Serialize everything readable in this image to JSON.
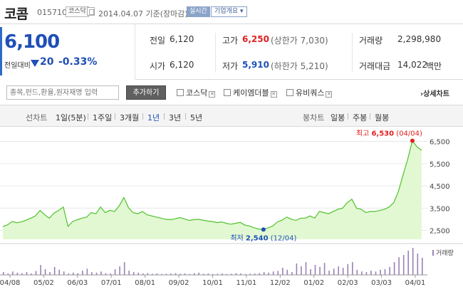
{
  "header": {
    "name": "코콤",
    "code": "015710",
    "market": "코스닥",
    "date": "2014.04.07 기준(장마감)",
    "live_label": "실시간",
    "info_label": "기업개요"
  },
  "price": {
    "current": "6,100",
    "change_label": "전일대비",
    "change": "20",
    "change_pct": "-0.33%",
    "color": "#1f4fb8"
  },
  "stats": {
    "prev_close_label": "전일",
    "prev_close": "6,120",
    "open_label": "시가",
    "open": "6,120",
    "high_label": "고가",
    "high": "6,250",
    "upper_limit": "(상한가 7,030)",
    "low_label": "저가",
    "low": "5,910",
    "lower_limit": "(하한가 5,210)",
    "volume_label": "거래량",
    "volume": "2,298,980",
    "amount_label": "거래대금",
    "amount": "14,022",
    "amount_unit": "백만"
  },
  "search": {
    "placeholder": "종목,펀드,환율,원자재명 입력",
    "add_label": "추가하기",
    "compare": [
      {
        "label": "코스닥"
      },
      {
        "label": "케이엠더블"
      },
      {
        "label": "유비쿼스"
      }
    ],
    "detail_label": "상세차트"
  },
  "tabs": {
    "line_label": "선차트",
    "line_items": [
      "1일(5분)",
      "1주일",
      "3개월",
      "1년",
      "3년",
      "5년"
    ],
    "line_selected": "1년",
    "candle_label": "봉차트",
    "candle_items": [
      "일봉",
      "주봉",
      "월봉"
    ]
  },
  "chart_data": {
    "type": "area",
    "x_ticks": [
      "04/08",
      "05/02",
      "06/03",
      "07/01",
      "08/01",
      "09/02",
      "10/01",
      "11/01",
      "12/02",
      "01/02",
      "02/03",
      "03/03",
      "04/01"
    ],
    "y_ticks": [
      "6,500",
      "5,500",
      "4,500",
      "3,500",
      "2,500"
    ],
    "ylim": [
      2100,
      6900
    ],
    "values": [
      2670,
      2750,
      2900,
      2850,
      2880,
      2960,
      3050,
      3150,
      3400,
      3200,
      3050,
      3280,
      3400,
      3550,
      2680,
      2900,
      2980,
      3050,
      3100,
      3300,
      3250,
      3550,
      3300,
      3400,
      3350,
      3600,
      3980,
      3520,
      3300,
      3250,
      3350,
      3200,
      3150,
      3100,
      3050,
      3000,
      2980,
      3020,
      3080,
      3020,
      2950,
      2980,
      3000,
      2960,
      2920,
      2900,
      2850,
      2880,
      2820,
      2780,
      2820,
      2860,
      2740,
      2700,
      2620,
      2560,
      2540,
      2620,
      2700,
      2880,
      2960,
      3100,
      3000,
      2950,
      3050,
      3050,
      3150,
      3050,
      3350,
      3300,
      3250,
      3350,
      3450,
      3500,
      3750,
      3900,
      3500,
      3450,
      3300,
      3350,
      3350,
      3400,
      3450,
      3550,
      3750,
      4250,
      5000,
      5700,
      6530,
      6250,
      6100
    ],
    "high": {
      "label": "최고",
      "value": "6,530",
      "date": "(04/04)"
    },
    "low": {
      "label": "최저",
      "value": "2,540",
      "date": "(12/04)"
    },
    "volume_label": "거래량",
    "volume": [
      0.1,
      0.05,
      0.12,
      0.08,
      0.06,
      0.1,
      0.05,
      0.14,
      0.35,
      0.2,
      0.1,
      0.28,
      0.18,
      0.12,
      0.05,
      0.08,
      0.06,
      0.15,
      0.22,
      0.1,
      0.08,
      0.12,
      0.06,
      0.05,
      0.2,
      0.3,
      0.45,
      0.15,
      0.1,
      0.08,
      0.05,
      0.06,
      0.04,
      0.05,
      0.03,
      0.04,
      0.05,
      0.06,
      0.04,
      0.05,
      0.03,
      0.06,
      0.08,
      0.04,
      0.05,
      0.03,
      0.04,
      0.05,
      0.03,
      0.04,
      0.06,
      0.05,
      0.03,
      0.04,
      0.05,
      0.06,
      0.1,
      0.08,
      0.12,
      0.14,
      0.25,
      0.18,
      0.1,
      0.4,
      0.3,
      0.45,
      0.2,
      0.35,
      0.28,
      0.42,
      0.15,
      0.22,
      0.3,
      0.25,
      0.38,
      0.45,
      0.18,
      0.12,
      0.1,
      0.15,
      0.12,
      0.18,
      0.2,
      0.28,
      0.45,
      0.62,
      0.7,
      0.85,
      0.95,
      0.75,
      0.6
    ],
    "colors": {
      "line": "#4fc22d",
      "fill": "#e2f8d2",
      "volume": "#9982b5",
      "high": "#e0201f",
      "low": "#1f4fb8"
    }
  }
}
